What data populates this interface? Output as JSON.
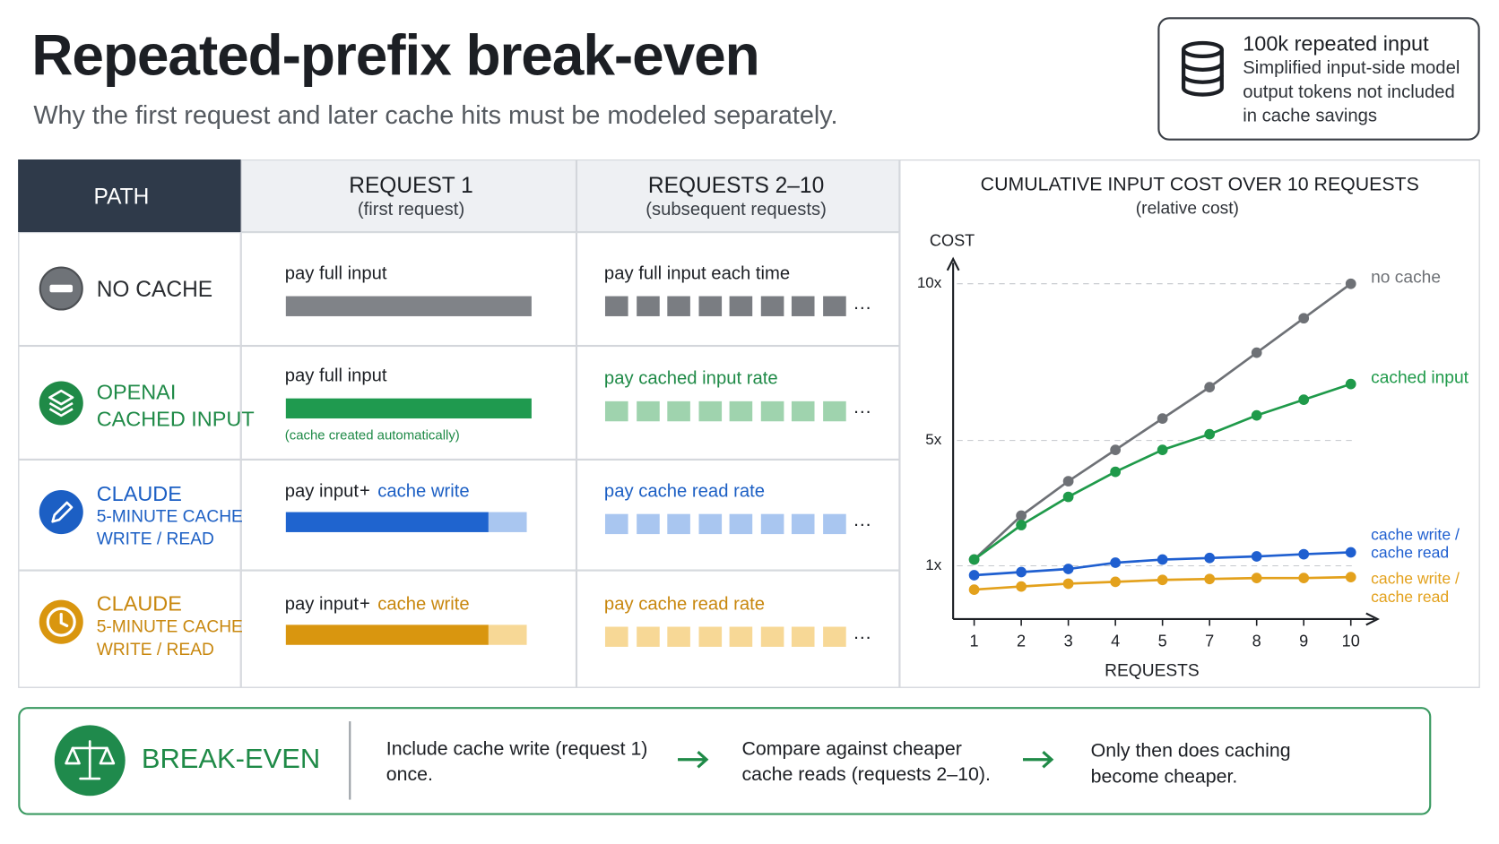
{
  "header": {
    "title": "Repeated-prefix break-even",
    "subtitle": "Why the first request and later cache hits must be modeled separately."
  },
  "info_box": {
    "title": "100k repeated input",
    "lines": [
      "Simplified input-side model",
      "output tokens not included",
      "in cache savings"
    ]
  },
  "table": {
    "headers": [
      {
        "title": "PATH"
      },
      {
        "title": "REQUEST 1",
        "subtitle": "(first request)"
      },
      {
        "title": "REQUESTS 2–10",
        "subtitle": "(subsequent requests)"
      }
    ],
    "rows": [
      {
        "path": {
          "title": "NO CACHE"
        },
        "request_1": {
          "text": "pay full input"
        },
        "requests_2_10": {
          "text": "pay full input each time",
          "more": "…"
        }
      },
      {
        "path": {
          "title": "OPENAI",
          "detail": [
            "CACHED INPUT"
          ]
        },
        "request_1": {
          "text": "pay full input",
          "note": "(cache created automatically)"
        },
        "requests_2_10": {
          "text": "pay cached input rate",
          "more": "…"
        }
      },
      {
        "path": {
          "title": "CLAUDE",
          "detail": [
            "5-MINUTE CACHE",
            "WRITE / READ"
          ]
        },
        "request_1": {
          "text": "pay input",
          "plus": "+",
          "extra": "cache write"
        },
        "requests_2_10": {
          "text": "pay cache read rate",
          "more": "…"
        }
      },
      {
        "path": {
          "title": "CLAUDE",
          "detail": [
            "5-MINUTE CACHE",
            "WRITE / READ"
          ]
        },
        "request_1": {
          "text": "pay input",
          "plus": "+",
          "extra": "cache write"
        },
        "requests_2_10": {
          "text": "pay cache read rate",
          "more": "…"
        }
      }
    ]
  },
  "chart_data": {
    "type": "line",
    "title": "CUMULATIVE INPUT COST OVER 10 REQUESTS",
    "subtitle": "(relative cost)",
    "y_label": "COST",
    "x_label": "REQUESTS",
    "categories": [
      "1",
      "2",
      "3",
      "4",
      "5",
      "7",
      "8",
      "9",
      "10"
    ],
    "ylim": [
      -0.7,
      10.5
    ],
    "yticks": [
      {
        "value": 1,
        "label": "1x"
      },
      {
        "value": 5,
        "label": "5x"
      },
      {
        "value": 10,
        "label": "10x"
      }
    ],
    "grid": true,
    "series": [
      {
        "name": "no cache",
        "color": "#6e7176",
        "values": [
          1.2,
          2.6,
          3.7,
          4.7,
          5.7,
          6.7,
          7.8,
          8.9,
          10
        ]
      },
      {
        "name": "cached input",
        "color": "#1f9a4a",
        "values": [
          1.2,
          2.3,
          3.2,
          4.0,
          4.7,
          5.2,
          5.8,
          6.3,
          6.8
        ]
      },
      {
        "name": "cache write / cache read",
        "color": "#1f5fd0",
        "values": [
          0.7,
          0.8,
          0.9,
          1.1,
          1.2,
          1.25,
          1.3,
          1.37,
          1.43
        ]
      },
      {
        "name": "cache write / cache read",
        "color": "#e3a11c",
        "values": [
          0.24,
          0.34,
          0.43,
          0.49,
          0.55,
          0.58,
          0.61,
          0.61,
          0.64
        ]
      }
    ]
  },
  "footer": {
    "title": "BREAK-EVEN",
    "steps": [
      "Include cache write (request 1) once.",
      "Compare against cheaper cache reads (requests 2–10).",
      "Only then does caching become cheaper."
    ]
  }
}
